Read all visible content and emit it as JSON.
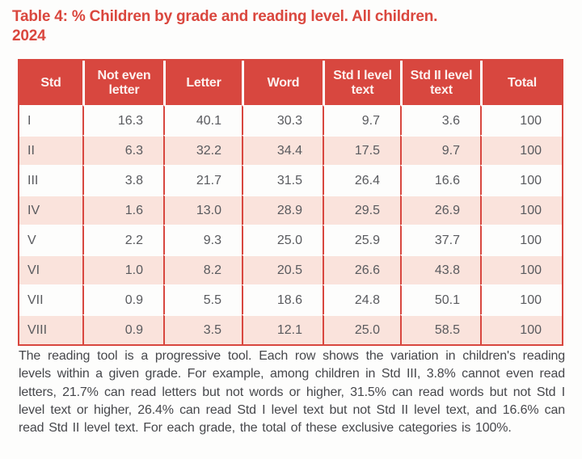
{
  "title": "Table 4: % Children by grade and reading level. All children. 2024",
  "colors": {
    "accent_red": "#D8473F",
    "row_pink": "#FAE3DC",
    "header_text": "#FCF1EF",
    "cell_text": "#595A5E",
    "footnote_text": "#46474B"
  },
  "table": {
    "columns": [
      "Std",
      "Not even letter",
      "Letter",
      "Word",
      "Std I level text",
      "Std II level text",
      "Total"
    ],
    "rows": [
      {
        "std": "I",
        "values": [
          "16.3",
          "40.1",
          "30.3",
          "9.7",
          "3.6",
          "100"
        ]
      },
      {
        "std": "II",
        "values": [
          "6.3",
          "32.2",
          "34.4",
          "17.5",
          "9.7",
          "100"
        ]
      },
      {
        "std": "III",
        "values": [
          "3.8",
          "21.7",
          "31.5",
          "26.4",
          "16.6",
          "100"
        ]
      },
      {
        "std": "IV",
        "values": [
          "1.6",
          "13.0",
          "28.9",
          "29.5",
          "26.9",
          "100"
        ]
      },
      {
        "std": "V",
        "values": [
          "2.2",
          "9.3",
          "25.0",
          "25.9",
          "37.7",
          "100"
        ]
      },
      {
        "std": "VI",
        "values": [
          "1.0",
          "8.2",
          "20.5",
          "26.6",
          "43.8",
          "100"
        ]
      },
      {
        "std": "VII",
        "values": [
          "0.9",
          "5.5",
          "18.6",
          "24.8",
          "50.1",
          "100"
        ]
      },
      {
        "std": "VIII",
        "values": [
          "0.9",
          "3.5",
          "12.1",
          "25.0",
          "58.5",
          "100"
        ]
      }
    ]
  },
  "footnote": "The reading tool is a progressive tool. Each row shows the variation in children's reading levels within a given grade. For example, among children in Std III, 3.8% cannot even read letters, 21.7% can read letters but not words or higher, 31.5% can read words but not Std I level text or higher, 26.4% can read Std I level text but not Std II level text, and 16.6% can read Std II level text. For each grade, the total of these exclusive categories is 100%."
}
